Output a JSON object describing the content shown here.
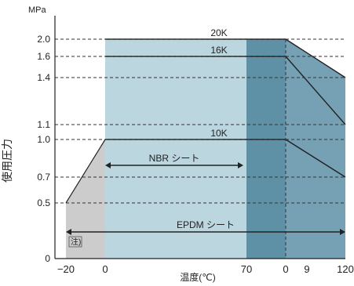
{
  "chart_data": {
    "type": "area",
    "yunit": "MPa",
    "ylabel": "使用圧力",
    "xlabel": "温度(℃)",
    "yticks": [
      "2.0",
      "1.6",
      "1.4",
      "1.1",
      "1.0",
      "0.7",
      "0.5",
      "0"
    ],
    "yvalues": [
      2.0,
      1.6,
      1.4,
      1.1,
      1.0,
      0.7,
      0.5,
      0
    ],
    "xticks": [
      "−20",
      "0",
      "70",
      "0",
      "9",
      "120"
    ],
    "series": [
      {
        "name": "20K",
        "points": [
          [
            0,
            2.0
          ],
          [
            90,
            2.0
          ],
          [
            120,
            1.4
          ]
        ]
      },
      {
        "name": "16K",
        "points": [
          [
            0,
            1.6
          ],
          [
            90,
            1.6
          ],
          [
            120,
            1.1
          ]
        ]
      },
      {
        "name": "10K",
        "points": [
          [
            0,
            1.0
          ],
          [
            90,
            1.0
          ],
          [
            120,
            0.7
          ]
        ]
      }
    ],
    "regions": [
      {
        "label": "NBR シート",
        "range": [
          0,
          70
        ]
      },
      {
        "label": "EPDM シート",
        "range": [
          -20,
          120
        ]
      }
    ],
    "note_label": "注)",
    "colors": {
      "grey": "#cccccc",
      "light": "#bcd6e0",
      "mid": "#5f91a6",
      "dark": "#76a1b5",
      "line": "#222222"
    },
    "grid": "dashed"
  }
}
